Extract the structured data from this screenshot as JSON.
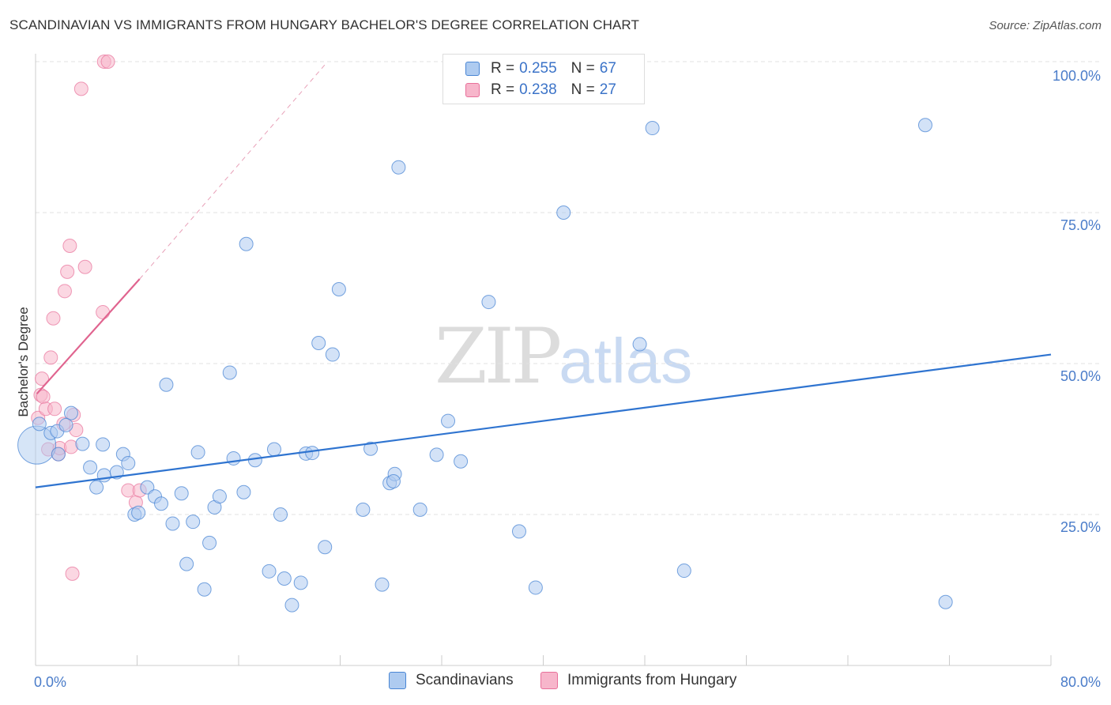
{
  "header": {
    "title": "SCANDINAVIAN VS IMMIGRANTS FROM HUNGARY BACHELOR'S DEGREE CORRELATION CHART",
    "source": "Source: ZipAtlas.com"
  },
  "watermark": {
    "zip": "ZIP",
    "atlas": "atlas"
  },
  "legend": {
    "rows": [
      {
        "r_label": "R = ",
        "r_value": "0.255",
        "n_label": "N = ",
        "n_value": "67"
      },
      {
        "r_label": "R = ",
        "r_value": "0.238",
        "n_label": "N = ",
        "n_value": "27"
      }
    ]
  },
  "bottom_legend": {
    "series1": "Scandinavians",
    "series2": "Immigrants from Hungary"
  },
  "chart_data": {
    "type": "scatter",
    "title": "SCANDINAVIAN VS IMMIGRANTS FROM HUNGARY BACHELOR'S DEGREE CORRELATION CHART",
    "ylabel": "Bachelor's Degree",
    "xlabel": "",
    "xlim": [
      0,
      80
    ],
    "ylim": [
      0,
      100
    ],
    "x_tick_labels": [
      "0.0%",
      "80.0%"
    ],
    "y_ticks": [
      25,
      50,
      75,
      100
    ],
    "y_tick_labels": [
      "25.0%",
      "50.0%",
      "75.0%",
      "100.0%"
    ],
    "grid": true,
    "colors": {
      "blue": "#4a86d4",
      "blue_fill": "#aecbf0",
      "pink": "#e8709a",
      "pink_fill": "#f7b6cb",
      "tick": "#4a7cc9"
    },
    "series": [
      {
        "name": "Scandinavians",
        "r": 0.255,
        "n": 67,
        "trend": {
          "x": [
            0,
            80
          ],
          "y": [
            29.5,
            51.5
          ]
        },
        "points": [
          [
            0.1,
            36.5
          ],
          [
            0.3,
            40.0
          ],
          [
            1.2,
            38.5
          ],
          [
            1.7,
            38.8
          ],
          [
            2.8,
            41.8
          ],
          [
            2.4,
            39.8
          ],
          [
            1.8,
            35.0
          ],
          [
            3.7,
            36.7
          ],
          [
            4.3,
            32.8
          ],
          [
            4.8,
            29.5
          ],
          [
            5.4,
            31.5
          ],
          [
            5.3,
            36.6
          ],
          [
            6.4,
            32.0
          ],
          [
            6.9,
            35.0
          ],
          [
            7.3,
            33.5
          ],
          [
            7.8,
            25.0
          ],
          [
            8.1,
            25.3
          ],
          [
            8.8,
            29.5
          ],
          [
            9.4,
            28.0
          ],
          [
            9.9,
            26.8
          ],
          [
            10.3,
            46.5
          ],
          [
            10.8,
            23.5
          ],
          [
            11.5,
            28.5
          ],
          [
            11.9,
            16.8
          ],
          [
            12.4,
            23.8
          ],
          [
            12.8,
            35.3
          ],
          [
            13.3,
            12.6
          ],
          [
            13.7,
            20.3
          ],
          [
            14.1,
            26.2
          ],
          [
            14.5,
            28.0
          ],
          [
            15.3,
            48.5
          ],
          [
            15.6,
            34.3
          ],
          [
            16.4,
            28.7
          ],
          [
            16.6,
            69.8
          ],
          [
            17.3,
            34.0
          ],
          [
            18.4,
            15.6
          ],
          [
            18.8,
            35.8
          ],
          [
            19.3,
            25.0
          ],
          [
            19.6,
            14.4
          ],
          [
            20.2,
            10.0
          ],
          [
            20.9,
            13.7
          ],
          [
            21.3,
            35.1
          ],
          [
            21.8,
            35.2
          ],
          [
            22.3,
            53.4
          ],
          [
            22.8,
            19.6
          ],
          [
            23.4,
            51.5
          ],
          [
            23.9,
            62.3
          ],
          [
            25.8,
            25.8
          ],
          [
            26.4,
            35.9
          ],
          [
            27.3,
            13.4
          ],
          [
            27.9,
            30.2
          ],
          [
            28.3,
            31.7
          ],
          [
            28.2,
            30.5
          ],
          [
            28.6,
            82.5
          ],
          [
            30.3,
            25.8
          ],
          [
            31.6,
            34.9
          ],
          [
            32.5,
            40.5
          ],
          [
            33.5,
            33.8
          ],
          [
            35.7,
            60.2
          ],
          [
            38.1,
            22.2
          ],
          [
            39.4,
            12.9
          ],
          [
            41.6,
            75.0
          ],
          [
            47.6,
            53.2
          ],
          [
            48.6,
            89.0
          ],
          [
            51.1,
            15.7
          ],
          [
            70.1,
            89.5
          ],
          [
            71.7,
            10.5
          ]
        ]
      },
      {
        "name": "Immigrants from Hungary",
        "r": 0.238,
        "n": 27,
        "trend_solid": {
          "x": [
            0.1,
            8.2
          ],
          "y": [
            45.0,
            64.0
          ]
        },
        "trend_dashed": {
          "x": [
            8.2,
            22.8
          ],
          "y": [
            64.0,
            99.5
          ]
        },
        "points": [
          [
            0.2,
            41.0
          ],
          [
            0.4,
            44.8
          ],
          [
            0.5,
            47.5
          ],
          [
            0.6,
            44.5
          ],
          [
            0.8,
            42.5
          ],
          [
            1.0,
            35.8
          ],
          [
            1.2,
            51.0
          ],
          [
            1.4,
            57.5
          ],
          [
            1.5,
            42.5
          ],
          [
            1.8,
            35.0
          ],
          [
            1.9,
            36.0
          ],
          [
            2.2,
            40.0
          ],
          [
            2.3,
            62.0
          ],
          [
            2.5,
            65.2
          ],
          [
            2.7,
            69.5
          ],
          [
            2.8,
            36.2
          ],
          [
            3.0,
            41.5
          ],
          [
            3.2,
            39.0
          ],
          [
            2.9,
            15.2
          ],
          [
            3.6,
            95.5
          ],
          [
            3.9,
            66.0
          ],
          [
            5.3,
            58.5
          ],
          [
            5.4,
            100.0
          ],
          [
            5.7,
            100.0
          ],
          [
            7.3,
            29.0
          ],
          [
            7.9,
            27.0
          ],
          [
            8.2,
            29.0
          ]
        ]
      }
    ]
  }
}
